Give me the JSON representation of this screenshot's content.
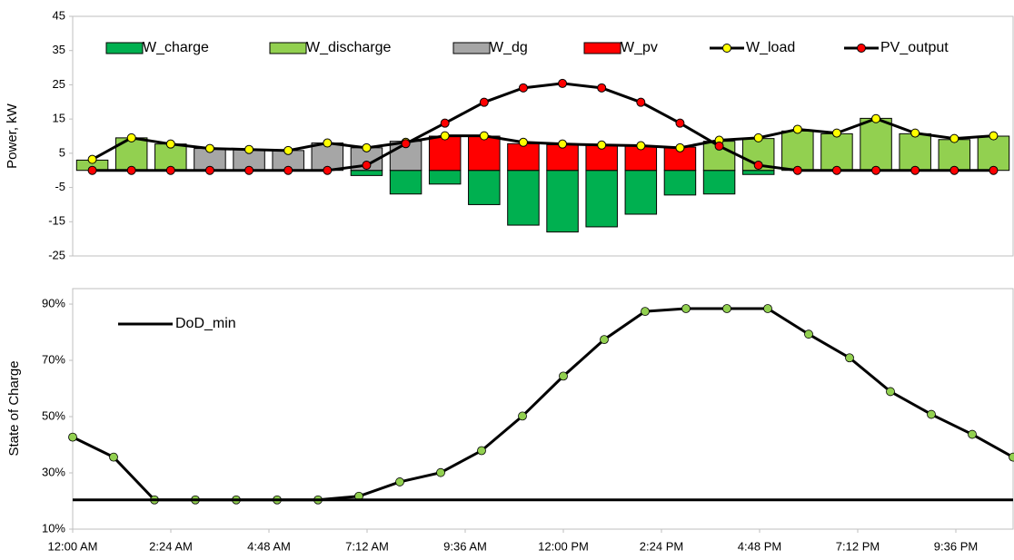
{
  "chart_data": [
    {
      "type": "bar",
      "y_label": "Power, kW",
      "categories": [
        null,
        null,
        null,
        null,
        null,
        null,
        null,
        null,
        null,
        null,
        null,
        null,
        null,
        null,
        null,
        null,
        null,
        null,
        null,
        null,
        null,
        null,
        null,
        null
      ],
      "ylim": [
        -25,
        45
      ],
      "yticks": [
        -25,
        -15,
        -5,
        5,
        15,
        25,
        35,
        45
      ],
      "series": [
        {
          "name": "W_charge",
          "type": "bar",
          "color": "#00b050",
          "values": [
            0,
            0,
            0,
            0,
            0,
            0,
            0,
            -1.5,
            -6.9,
            -4,
            -10,
            -16,
            -18,
            -16.5,
            -12.8,
            -7.2,
            -6.9,
            -1.2,
            0,
            0,
            0,
            0,
            0,
            0
          ]
        },
        {
          "name": "W_discharge",
          "type": "bar",
          "color": "#92d050",
          "values": [
            3,
            9.5,
            7.7,
            0,
            0,
            0,
            0,
            0,
            0,
            0,
            0,
            0,
            0,
            0,
            0,
            0,
            8.5,
            9.3,
            11.5,
            10.7,
            15.2,
            10.7,
            9,
            10
          ]
        },
        {
          "name": "W_dg",
          "type": "bar",
          "color": "#a6a6a6",
          "values": [
            0,
            0,
            0,
            6.4,
            6,
            5.8,
            8,
            6.6,
            8.5,
            0,
            0,
            0,
            0,
            0,
            0,
            0,
            0,
            0,
            0,
            0,
            0,
            0,
            0,
            0
          ]
        },
        {
          "name": "W_pv",
          "type": "bar",
          "color": "#ff0000",
          "values": [
            0,
            0,
            0,
            0,
            0,
            0,
            0,
            0,
            0,
            10,
            10,
            7.8,
            7.5,
            7.4,
            7.2,
            6.8,
            0,
            0,
            0,
            0,
            0,
            0,
            0,
            0
          ]
        },
        {
          "name": "W_load",
          "type": "line",
          "color": "#000000",
          "marker_color": "#ffff00",
          "values": [
            3.2,
            9.5,
            7.7,
            6.4,
            6.1,
            5.8,
            8,
            6.6,
            8.2,
            10.1,
            10.1,
            8.2,
            7.7,
            7.4,
            7.2,
            6.6,
            8.8,
            9.5,
            12,
            10.9,
            15.1,
            10.9,
            9.3,
            10.1
          ]
        },
        {
          "name": "PV_output",
          "type": "line",
          "color": "#000000",
          "marker_color": "#ff0000",
          "values": [
            0,
            0,
            0,
            0,
            0,
            0,
            0,
            1.5,
            7.8,
            13.8,
            19.9,
            24.1,
            25.4,
            24.1,
            19.9,
            13.8,
            7.1,
            1.5,
            0,
            0,
            0,
            0,
            0,
            0
          ]
        }
      ]
    },
    {
      "type": "line",
      "y_label": "State of Charge",
      "x": [
        0,
        1,
        2,
        3,
        4,
        5,
        6,
        7,
        8,
        9,
        10,
        11,
        12,
        13,
        14,
        15,
        16,
        17,
        18,
        19,
        20,
        21,
        22,
        23
      ],
      "xlim": [
        0,
        23
      ],
      "xticks": [
        {
          "value": 0,
          "label": "12:00 AM"
        },
        {
          "value": 2.4,
          "label": "2:24 AM"
        },
        {
          "value": 4.8,
          "label": "4:48 AM"
        },
        {
          "value": 7.2,
          "label": "7:12 AM"
        },
        {
          "value": 9.6,
          "label": "9:36 AM"
        },
        {
          "value": 12,
          "label": "12:00 PM"
        },
        {
          "value": 14.4,
          "label": "2:24 PM"
        },
        {
          "value": 16.8,
          "label": "4:48 PM"
        },
        {
          "value": 19.2,
          "label": "7:12 PM"
        },
        {
          "value": 21.6,
          "label": "9:36 PM"
        }
      ],
      "ylim": [
        10,
        95.5
      ],
      "yticks": [
        {
          "value": 10,
          "label": "10%"
        },
        {
          "value": 30,
          "label": "30%"
        },
        {
          "value": 50,
          "label": "50%"
        },
        {
          "value": 70,
          "label": "70%"
        },
        {
          "value": 90,
          "label": "90%"
        }
      ],
      "series": [
        {
          "color": "#000000",
          "marker_color": "#92d050",
          "values": [
            42.7,
            35.6,
            20.4,
            20.4,
            20.4,
            20.4,
            20.4,
            21.7,
            26.8,
            30.1,
            37.9,
            50.2,
            64.4,
            77.4,
            87.4,
            88.4,
            88.4,
            88.4,
            79.3,
            70.9,
            58.9,
            50.8,
            43.7,
            35.6
          ]
        },
        {
          "name": "DoD_min",
          "color": "#000000",
          "values": [
            20.4,
            20.4,
            20.4,
            20.4,
            20.4,
            20.4,
            20.4,
            20.4,
            20.4,
            20.4,
            20.4,
            20.4,
            20.4,
            20.4,
            20.4,
            20.4,
            20.4,
            20.4,
            20.4,
            20.4,
            20.4,
            20.4,
            20.4,
            20.4
          ]
        }
      ]
    }
  ]
}
